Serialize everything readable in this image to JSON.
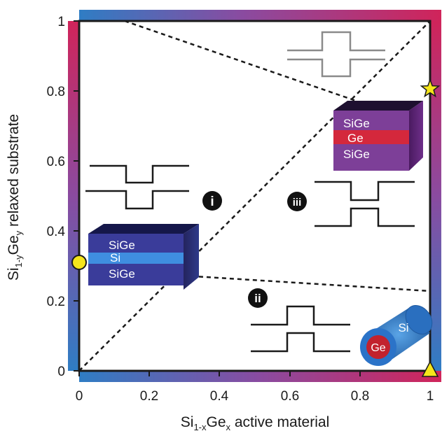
{
  "axes": {
    "xlabel": {
      "main1": "Si",
      "sub1": "1-x",
      "main2": "Ge",
      "sub2": "x",
      "rest": " active material"
    },
    "ylabel": {
      "main1": "Si",
      "sub1": "1-y",
      "main2": "Ge",
      "sub2": "y",
      "rest": " relaxed substrate"
    },
    "x_ticks": [
      "0",
      "0.2",
      "0.4",
      "0.6",
      "0.8",
      "1"
    ],
    "y_ticks": [
      "0",
      "0.2",
      "0.4",
      "0.6",
      "0.8",
      "1"
    ]
  },
  "regions": {
    "i": "i",
    "ii": "ii",
    "iii": "iii"
  },
  "stacks": {
    "si_well": {
      "top": "SiGe",
      "middle": "Si",
      "bottom": "SiGe"
    },
    "ge_well": {
      "top": "SiGe",
      "middle": "Ge",
      "bottom": "SiGe"
    }
  },
  "nanowire": {
    "shell": "Si",
    "core": "Ge"
  },
  "colors": {
    "blue": "#2f7dc4",
    "purple": "#8a4ba0",
    "magenta": "#c8265f",
    "red": "#d12a3a",
    "marker_yellow": "#f5e51b"
  },
  "markers": {
    "circle": {
      "x": 0,
      "y": 0.31,
      "shape": "circle"
    },
    "star": {
      "x": 1,
      "y": 0.8,
      "shape": "star"
    },
    "triangle": {
      "x": 1,
      "y": 0,
      "shape": "triangle"
    }
  }
}
